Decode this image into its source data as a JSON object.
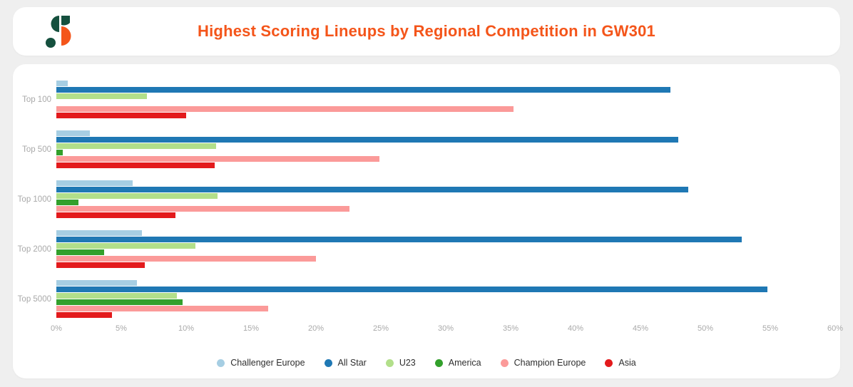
{
  "header": {
    "title": "Highest Scoring Lineups by Regional Competition in GW301",
    "title_color": "#F4551A",
    "logo_colors": {
      "green": "#15503E",
      "orange": "#F4551A"
    }
  },
  "chart_data": {
    "type": "bar",
    "orientation": "horizontal",
    "title": "Highest Scoring Lineups by Regional Competition in GW301",
    "categories": [
      "Top 100",
      "Top 500",
      "Top 1000",
      "Top 2000",
      "Top 5000"
    ],
    "series": [
      {
        "name": "Challenger Europe",
        "color": "#A6CEE3",
        "values": [
          0.9,
          2.6,
          5.9,
          6.6,
          6.2
        ]
      },
      {
        "name": "All Star",
        "color": "#1F78B4",
        "values": [
          47.3,
          47.9,
          48.7,
          52.8,
          54.8
        ]
      },
      {
        "name": "U23",
        "color": "#B2DF8A",
        "values": [
          7.0,
          12.3,
          12.4,
          10.7,
          9.3
        ]
      },
      {
        "name": "America",
        "color": "#33A02C",
        "values": [
          0,
          0.5,
          1.7,
          3.7,
          9.7
        ]
      },
      {
        "name": "Champion Europe",
        "color": "#FB9A99",
        "values": [
          35.2,
          24.9,
          22.6,
          20.0,
          16.3
        ]
      },
      {
        "name": "Asia",
        "color": "#E31A1C",
        "values": [
          10.0,
          12.2,
          9.2,
          6.8,
          4.3
        ]
      }
    ],
    "xlabel": "",
    "ylabel": "",
    "xlim": [
      0,
      60
    ],
    "x_ticks": [
      "0%",
      "5%",
      "10%",
      "15%",
      "20%",
      "25%",
      "30%",
      "35%",
      "40%",
      "45%",
      "50%",
      "55%",
      "60%"
    ],
    "grid": false,
    "legend_position": "bottom"
  }
}
